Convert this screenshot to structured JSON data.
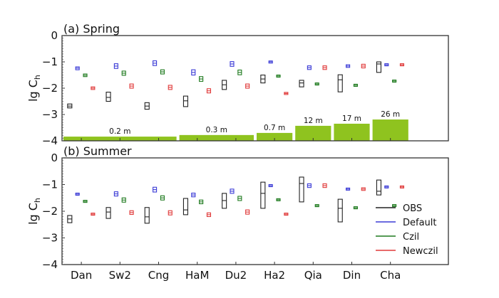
{
  "chart_data": {
    "type": "box",
    "categories": [
      "Dan",
      "Sw2",
      "Cng",
      "HaM",
      "Du2",
      "Ha2",
      "Qia",
      "Din",
      "Cha"
    ],
    "ylabel": "lg C",
    "ylabel_sub": "h",
    "ylim": [
      -4,
      0
    ],
    "yticks": [
      "0",
      "−1",
      "−2",
      "−3",
      "−4"
    ],
    "ytick_values": [
      0,
      -1,
      -2,
      -3,
      -4
    ],
    "legend": {
      "placement": "lower-right of panel (b)",
      "entries": [
        {
          "name": "OBS",
          "color": "#222222"
        },
        {
          "name": "Default",
          "color": "#3b3bd6"
        },
        {
          "name": "Czil",
          "color": "#1e7a1e"
        },
        {
          "name": "Newczil",
          "color": "#e03a3a"
        }
      ]
    },
    "panels": [
      {
        "title": "(a) Spring",
        "series": [
          {
            "name": "OBS",
            "median": [
              -2.68,
              -2.35,
              -2.68,
              -2.48,
              -1.87,
              -1.65,
              -1.8,
              -1.68,
              -1.08
            ],
            "low": [
              -2.75,
              -2.5,
              -2.8,
              -2.7,
              -2.05,
              -1.8,
              -1.95,
              -2.14,
              -1.4
            ],
            "high": [
              -2.6,
              -2.15,
              -2.55,
              -2.3,
              -1.7,
              -1.5,
              -1.7,
              -1.49,
              -1.0
            ]
          },
          {
            "name": "Default",
            "median": [
              -1.24,
              -1.16,
              -1.05,
              -1.4,
              -1.08,
              -1.0,
              -1.22,
              -1.16,
              -1.11
            ],
            "low": [
              -1.3,
              -1.25,
              -1.14,
              -1.5,
              -1.17,
              -1.04,
              -1.29,
              -1.21,
              -1.14
            ],
            "high": [
              -1.19,
              -1.07,
              -0.96,
              -1.3,
              -0.99,
              -0.97,
              -1.15,
              -1.11,
              -1.08
            ]
          },
          {
            "name": "Czil",
            "median": [
              -1.51,
              -1.43,
              -1.38,
              -1.65,
              -1.4,
              -1.54,
              -1.84,
              -1.89,
              -1.73
            ],
            "low": [
              -1.56,
              -1.51,
              -1.46,
              -1.74,
              -1.49,
              -1.57,
              -1.87,
              -1.92,
              -1.76
            ],
            "high": [
              -1.46,
              -1.35,
              -1.3,
              -1.56,
              -1.31,
              -1.51,
              -1.81,
              -1.86,
              -1.7
            ]
          },
          {
            "name": "Newczil",
            "median": [
              -2.0,
              -1.92,
              -1.97,
              -2.1,
              -1.92,
              -2.2,
              -1.22,
              -1.16,
              -1.11
            ],
            "low": [
              -2.05,
              -2.0,
              -2.05,
              -2.18,
              -2.0,
              -2.23,
              -1.29,
              -1.23,
              -1.15
            ],
            "high": [
              -1.95,
              -1.84,
              -1.89,
              -2.02,
              -1.84,
              -2.17,
              -1.15,
              -1.09,
              -1.07
            ]
          }
        ],
        "height_bars": [
          {
            "label": "0.2 m",
            "from": "Dan",
            "to": "Cng",
            "value": -3.84
          },
          {
            "label": "0.3 m",
            "from": "HaM",
            "to": "Du2",
            "value": -3.78
          },
          {
            "label": "0.7 m",
            "from": "Ha2",
            "to": "Ha2",
            "value": -3.7
          },
          {
            "label": "12 m",
            "from": "Qia",
            "to": "Qia",
            "value": -3.43
          },
          {
            "label": "17 m",
            "from": "Din",
            "to": "Din",
            "value": -3.35
          },
          {
            "label": "26 m",
            "from": "Cha",
            "to": "Cha",
            "value": -3.19
          }
        ],
        "height_bar_color": "#8fc31f"
      },
      {
        "title": "(b) Summer",
        "series": [
          {
            "name": "OBS",
            "median": [
              -2.29,
              -2.03,
              -2.21,
              -1.95,
              -1.6,
              -1.33,
              -0.96,
              -1.89,
              -1.25
            ],
            "low": [
              -2.43,
              -2.27,
              -2.45,
              -2.13,
              -1.89,
              -1.89,
              -1.65,
              -2.4,
              -1.39
            ],
            "high": [
              -2.16,
              -1.86,
              -1.86,
              -1.52,
              -1.33,
              -0.91,
              -0.72,
              -1.55,
              -0.83
            ]
          },
          {
            "name": "Default",
            "median": [
              -1.36,
              -1.35,
              -1.19,
              -1.39,
              -1.25,
              -1.04,
              -1.04,
              -1.17,
              -1.09
            ],
            "low": [
              -1.39,
              -1.43,
              -1.28,
              -1.46,
              -1.33,
              -1.07,
              -1.11,
              -1.2,
              -1.12
            ],
            "high": [
              -1.33,
              -1.27,
              -1.1,
              -1.32,
              -1.17,
              -1.01,
              -0.97,
              -1.14,
              -1.06
            ]
          },
          {
            "name": "Czil",
            "median": [
              -1.63,
              -1.58,
              -1.5,
              -1.65,
              -1.52,
              -1.57,
              -1.79,
              -1.87,
              -1.79
            ],
            "low": [
              -1.66,
              -1.66,
              -1.58,
              -1.72,
              -1.6,
              -1.6,
              -1.82,
              -1.9,
              -1.82
            ],
            "high": [
              -1.6,
              -1.5,
              -1.42,
              -1.58,
              -1.44,
              -1.54,
              -1.76,
              -1.84,
              -1.76
            ]
          },
          {
            "name": "Newczil",
            "median": [
              -2.11,
              -2.05,
              -2.06,
              -2.13,
              -2.03,
              -2.11,
              -1.04,
              -1.17,
              -1.09
            ],
            "low": [
              -2.14,
              -2.12,
              -2.14,
              -2.2,
              -2.11,
              -2.14,
              -1.11,
              -1.22,
              -1.13
            ],
            "high": [
              -2.08,
              -1.98,
              -1.98,
              -2.06,
              -1.95,
              -2.08,
              -0.97,
              -1.12,
              -1.05
            ]
          }
        ]
      }
    ]
  }
}
